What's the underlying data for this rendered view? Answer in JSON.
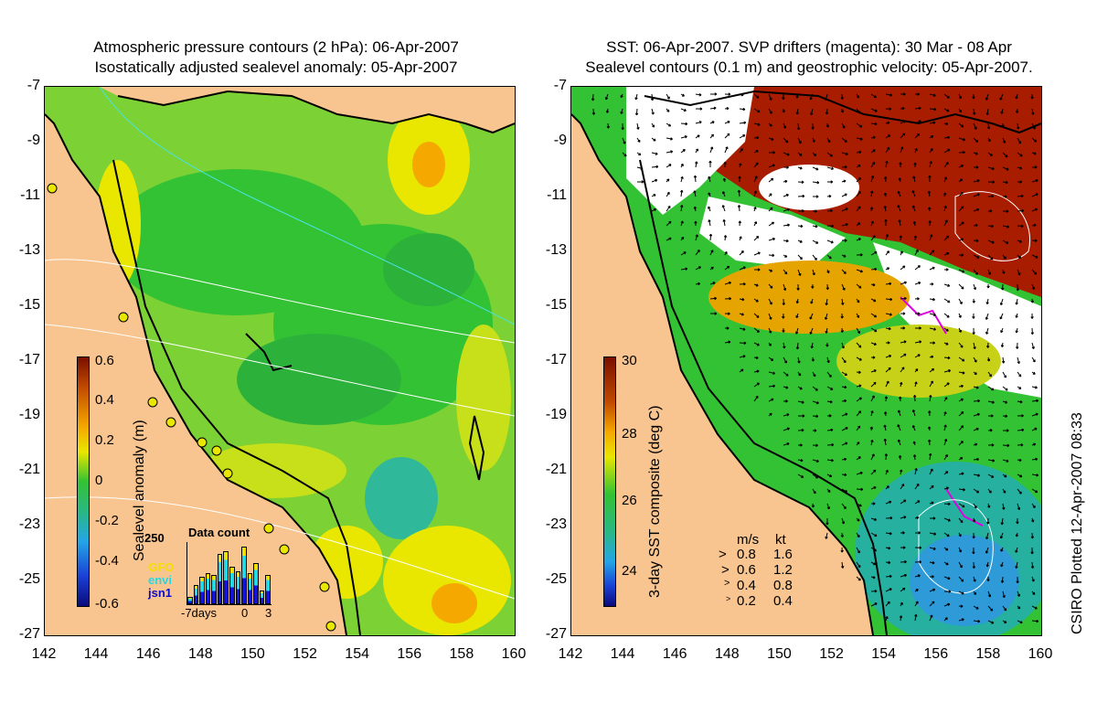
{
  "left_panel": {
    "title_line1": "Atmospheric pressure contours (2 hPa): 06-Apr-2007",
    "title_line2": "Isostatically adjusted sealevel anomaly: 05-Apr-2007",
    "colorbar": {
      "label": "Sealevel anomaly (m)",
      "ticks": [
        "0.6",
        "0.4",
        "0.2",
        "0",
        "-0.2",
        "-0.4",
        "-0.6"
      ]
    },
    "data_count": {
      "title": "Data count",
      "ymax": "250",
      "sat1": "GFO",
      "sat2": "envi",
      "sat3": "jsn1",
      "x_left": "-7days",
      "x_mid": "0",
      "x_right": "3",
      "bars_total": [
        0.12,
        0.32,
        0.45,
        0.52,
        0.48,
        0.84,
        0.88,
        0.62,
        0.55,
        0.96,
        0.52,
        0.68,
        0.22,
        0.48
      ]
    }
  },
  "right_panel": {
    "title_line1": "SST: 06-Apr-2007. SVP drifters (magenta): 30 Mar - 08 Apr",
    "title_line2": "Sealevel contours (0.1 m) and geostrophic velocity: 05-Apr-2007.",
    "colorbar": {
      "label": "3-day SST composite (deg C)",
      "ticks": [
        "30",
        "28",
        "26",
        "24"
      ]
    },
    "velocity_legend": {
      "header_ms": "m/s",
      "header_kt": "kt",
      "rows": [
        {
          "ms": "0.8",
          "kt": "1.6"
        },
        {
          "ms": "0.6",
          "kt": "1.2"
        },
        {
          "ms": "0.4",
          "kt": "0.8"
        },
        {
          "ms": "0.2",
          "kt": "0.4"
        }
      ]
    }
  },
  "axes": {
    "y_ticks": [
      "-7",
      "-9",
      "-11",
      "-13",
      "-15",
      "-17",
      "-19",
      "-21",
      "-23",
      "-25",
      "-27"
    ],
    "x_ticks": [
      "142",
      "144",
      "146",
      "148",
      "150",
      "152",
      "154",
      "156",
      "158",
      "160"
    ]
  },
  "credit": "CSIRO Plotted 12-Apr-2007 08:33",
  "colors": {
    "land": "#f8c48f",
    "sea_green": "#33c233",
    "sea_yellow": "#e9e600",
    "sea_orange": "#f5a800",
    "sst_red": "#a81c00",
    "coast": "#000000"
  }
}
